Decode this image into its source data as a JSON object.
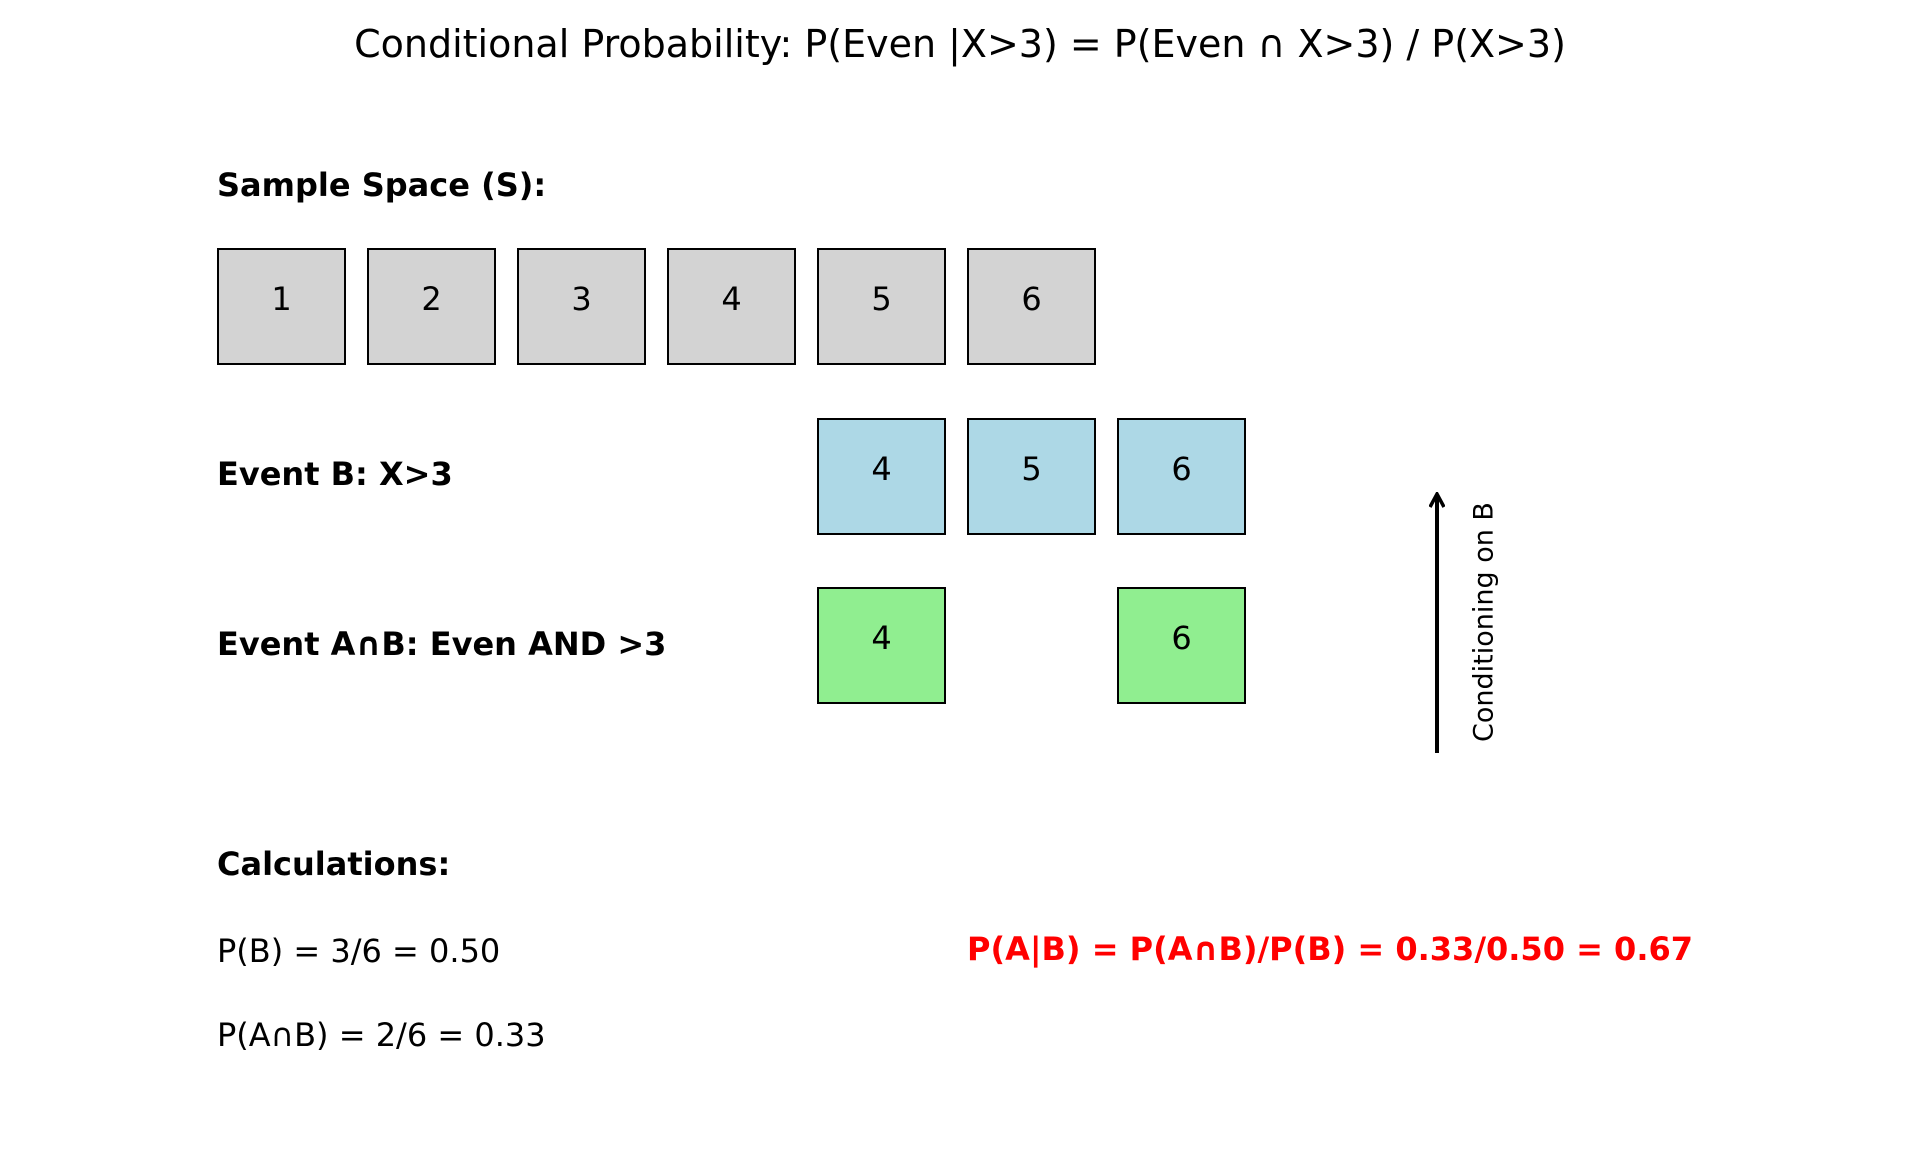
{
  "title": "Conditional Probability: P(Even |X>3) = P(Even ∩ X>3) / P(X>3)",
  "sample_space": {
    "label": "Sample Space (S):",
    "outcomes": [
      "1",
      "2",
      "3",
      "4",
      "5",
      "6"
    ]
  },
  "event_b": {
    "label": "Event B: X>3",
    "outcomes": [
      "4",
      "5",
      "6"
    ]
  },
  "event_ab": {
    "label": "Event A∩B: Even AND >3",
    "outcomes": [
      "4",
      "6"
    ]
  },
  "arrow": {
    "label": "Conditioning on B"
  },
  "calculations": {
    "label": "Calculations:",
    "p_b": "P(B) = 3/6 = 0.50",
    "p_ab": "P(A∩B) = 2/6 = 0.33",
    "result": "P(A|B) = P(A∩B)/P(B) = 0.33/0.50 = 0.67"
  },
  "colors": {
    "sample_space": "#d3d3d3",
    "event_b": "#add8e6",
    "event_ab": "#90ee90",
    "result_text": "#ff0000"
  }
}
